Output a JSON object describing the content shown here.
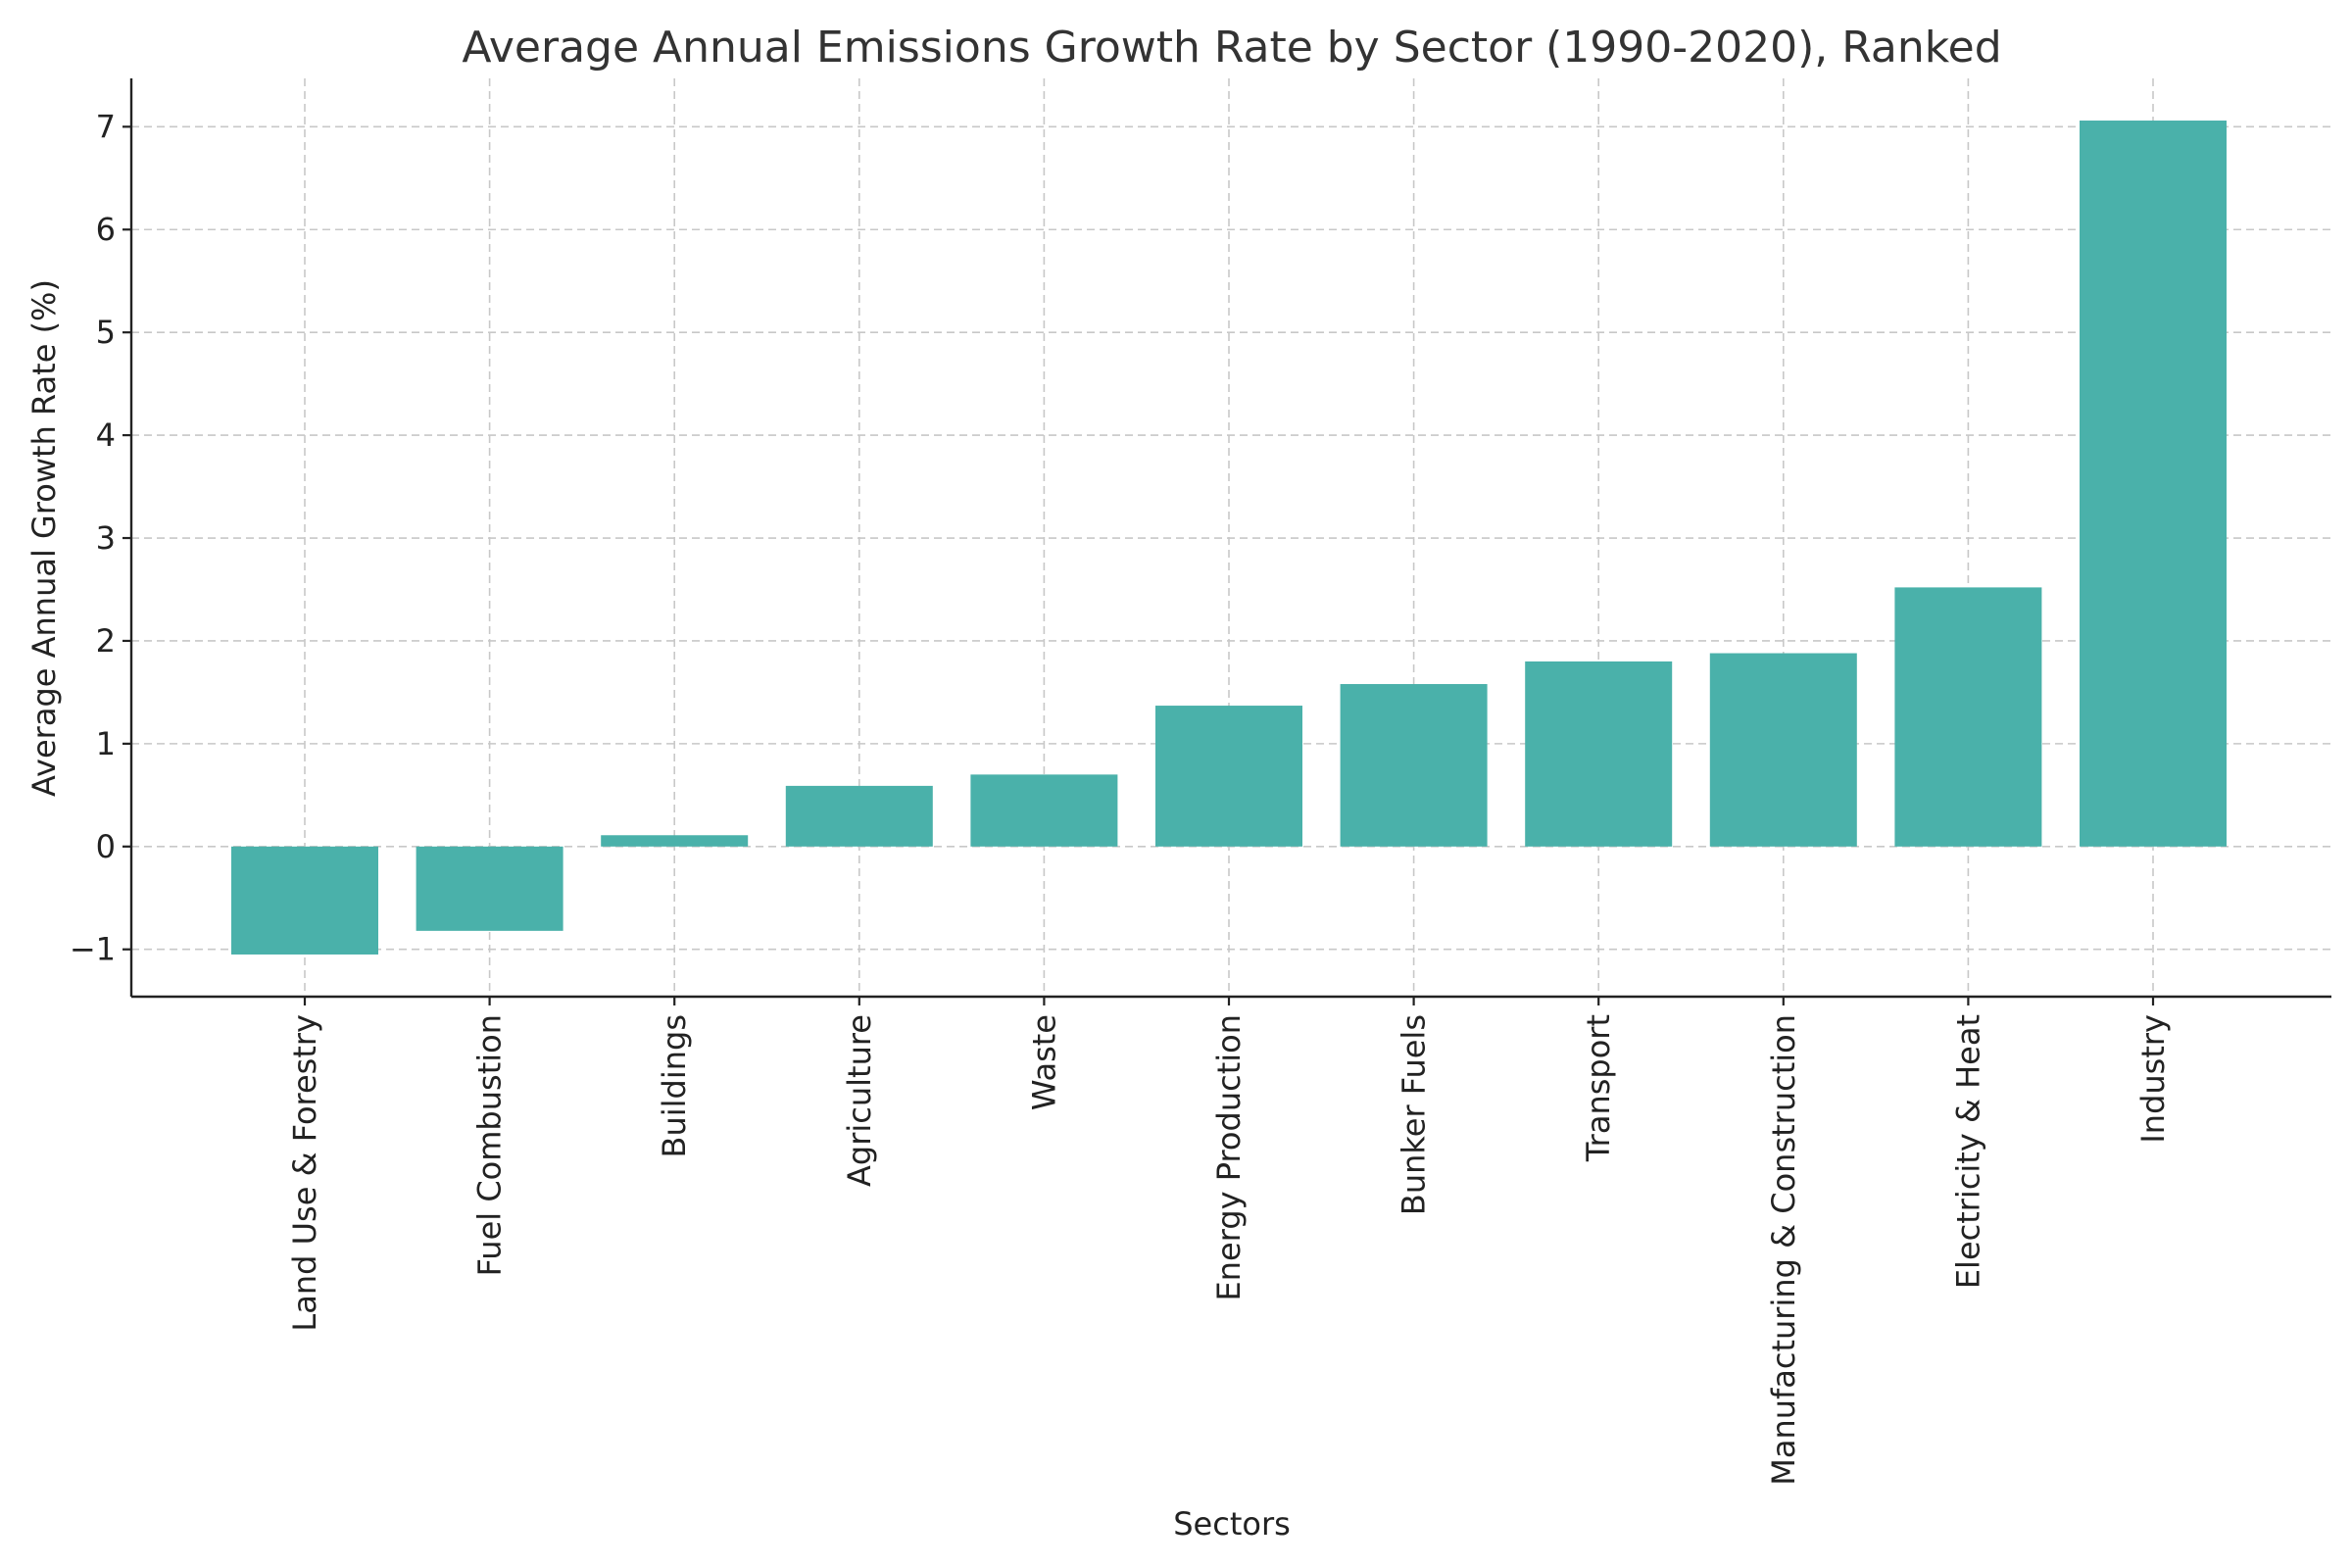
{
  "chart_data": {
    "type": "bar",
    "title": "Average Annual Emissions Growth Rate by Sector (1990-2020), Ranked",
    "xlabel": "Sectors",
    "ylabel": "Average Annual Growth Rate (%)",
    "categories": [
      "Land Use & Forestry",
      "Fuel Combustion",
      "Buildings",
      "Agriculture",
      "Waste",
      "Energy Production",
      "Bunker Fuels",
      "Transport",
      "Manufacturing & Construction",
      "Electricity & Heat",
      "Industry"
    ],
    "values": [
      -1.05,
      -0.82,
      0.11,
      0.59,
      0.7,
      1.37,
      1.58,
      1.8,
      1.88,
      2.52,
      7.06
    ],
    "yticks": [
      -1,
      0,
      1,
      2,
      3,
      4,
      5,
      6,
      7
    ],
    "ytick_labels": [
      "−1",
      "0",
      "1",
      "2",
      "3",
      "4",
      "5",
      "6",
      "7"
    ],
    "ylim": [
      -1.46,
      7.47
    ],
    "grid": true,
    "bar_color": "#4ab1aa"
  }
}
